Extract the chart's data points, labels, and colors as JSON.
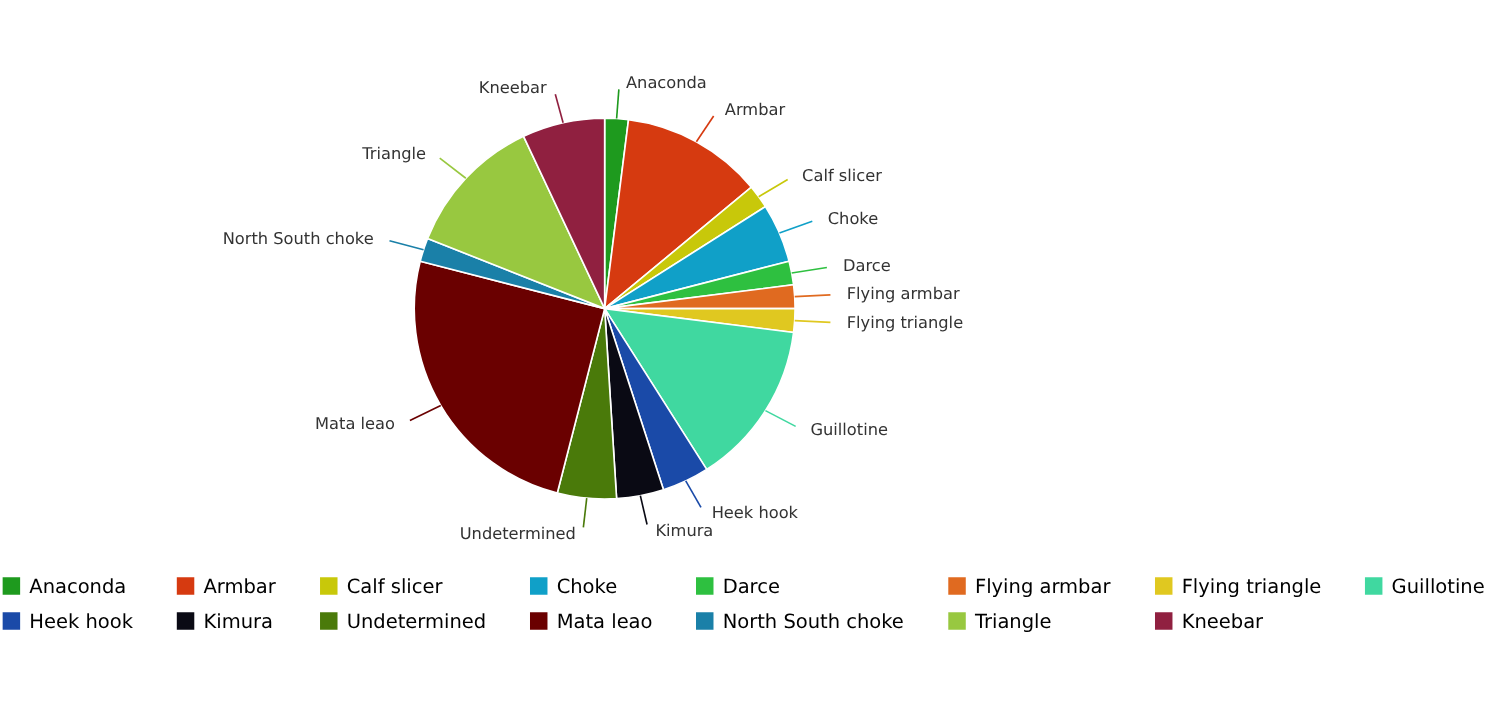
{
  "chart_data": {
    "type": "pie",
    "categories": [
      "Anaconda",
      "Armbar",
      "Calf slicer",
      "Choke",
      "Darce",
      "Flying armbar",
      "Flying triangle",
      "Guillotine",
      "Heek hook",
      "Kimura",
      "Undetermined",
      "Mata leao",
      "North South choke",
      "Triangle",
      "Kneebar"
    ],
    "values": [
      2,
      12,
      2,
      5,
      2,
      2,
      2,
      14,
      4,
      4,
      5,
      25,
      2,
      12,
      7
    ],
    "colors": [
      "#1e9a1e",
      "#d63a10",
      "#c8c80a",
      "#10a0c8",
      "#2ec040",
      "#e06a20",
      "#e0c820",
      "#40d8a0",
      "#1a4aa8",
      "#0a0a14",
      "#4a7a0a",
      "#6a0000",
      "#1a80a8",
      "#98c840",
      "#902040"
    ],
    "legend": "bottom"
  }
}
